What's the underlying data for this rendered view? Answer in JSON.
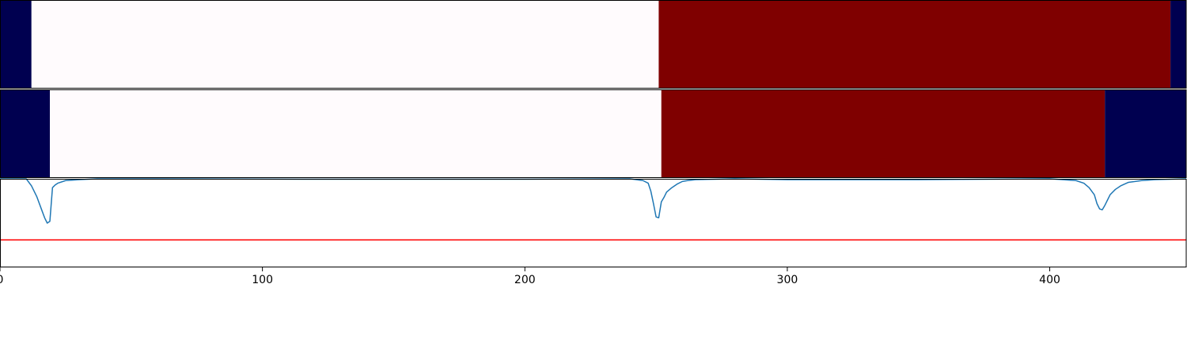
{
  "chart_data": [
    {
      "type": "heatmap",
      "panel": "top-band",
      "xlim": [
        0,
        452
      ],
      "segments": [
        {
          "start": 0,
          "end": 12,
          "level": "low",
          "color": "#000050"
        },
        {
          "start": 12,
          "end": 251,
          "level": "mid",
          "color": "#fffbfd"
        },
        {
          "start": 251,
          "end": 446,
          "level": "high",
          "color": "#7f0000"
        },
        {
          "start": 446,
          "end": 452,
          "level": "low",
          "color": "#000050"
        }
      ]
    },
    {
      "type": "heatmap",
      "panel": "middle-band",
      "xlim": [
        0,
        452
      ],
      "segments": [
        {
          "start": 0,
          "end": 19,
          "level": "low",
          "color": "#000050"
        },
        {
          "start": 19,
          "end": 252,
          "level": "mid",
          "color": "#fffbfd"
        },
        {
          "start": 252,
          "end": 421,
          "level": "high",
          "color": "#7f0000"
        },
        {
          "start": 421,
          "end": 452,
          "level": "low",
          "color": "#000050"
        }
      ]
    },
    {
      "type": "line",
      "panel": "signal",
      "xlim": [
        0,
        452
      ],
      "ylim": [
        -1.0,
        0.0
      ],
      "grid": false,
      "series": [
        {
          "color": "#1f77b4",
          "x": [
            0,
            10,
            12,
            14,
            16,
            17,
            18,
            19,
            20,
            21,
            22,
            25,
            30,
            37,
            60,
            120,
            200,
            240,
            245,
            247,
            248,
            249,
            250,
            251,
            252,
            253,
            254,
            256,
            258,
            260,
            262,
            265,
            280,
            300,
            350,
            400,
            410,
            413,
            415,
            417,
            418,
            419,
            420,
            421,
            422,
            423,
            425,
            427,
            430,
            435,
            440,
            452
          ],
          "y": [
            0.0,
            0.0,
            -0.08,
            -0.2,
            -0.36,
            -0.44,
            -0.5,
            -0.48,
            -0.1,
            -0.07,
            -0.05,
            -0.02,
            -0.01,
            0.0,
            0.0,
            -0.005,
            -0.005,
            0.0,
            -0.02,
            -0.05,
            -0.14,
            -0.28,
            -0.43,
            -0.44,
            -0.26,
            -0.21,
            -0.15,
            -0.1,
            -0.06,
            -0.03,
            -0.02,
            -0.01,
            0.0,
            -0.01,
            -0.01,
            0.0,
            -0.02,
            -0.05,
            -0.1,
            -0.18,
            -0.28,
            -0.34,
            -0.35,
            -0.3,
            -0.24,
            -0.18,
            -0.12,
            -0.08,
            -0.04,
            -0.02,
            -0.01,
            0.0
          ]
        },
        {
          "color": "#ff0000",
          "x": [
            0,
            452
          ],
          "y": [
            -0.69,
            -0.69
          ]
        }
      ],
      "xticks": [
        "0",
        "100",
        "200",
        "300",
        "400"
      ],
      "xtick_values": [
        0,
        100,
        200,
        300,
        400
      ]
    }
  ]
}
